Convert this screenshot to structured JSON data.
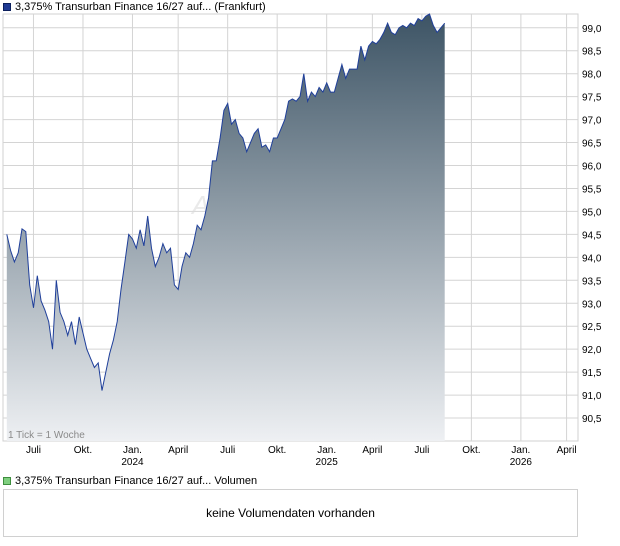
{
  "legend": {
    "price_label": "3,375% Transurban Finance 16/27 auf... (Frankfurt)",
    "volume_label": "3,375% Transurban Finance 16/27 auf... Volumen"
  },
  "volume_panel": {
    "empty_text": "keine Volumendaten vorhanden"
  },
  "tick_note": "1 Tick = 1 Woche",
  "watermark": "Akt",
  "colors": {
    "line": "#1f3f9a",
    "fill_top": "#3d5465",
    "fill_bottom": "#eef0f3",
    "grid": "#d4d4d4"
  },
  "chart_data": {
    "type": "area",
    "ylim": [
      90.0,
      99.3
    ],
    "y_ticks": [
      90.5,
      91.0,
      91.5,
      92.0,
      92.5,
      93.0,
      93.5,
      94.0,
      94.5,
      95.0,
      95.5,
      96.0,
      96.5,
      97.0,
      97.5,
      98.0,
      98.5,
      99.0
    ],
    "y_tick_labels": [
      "90,5",
      "91,0",
      "91,5",
      "92,0",
      "92,5",
      "93,0",
      "93,5",
      "94,0",
      "94,5",
      "95,0",
      "95,5",
      "96,0",
      "96,5",
      "97,0",
      "97,5",
      "98,0",
      "98,5",
      "99,0"
    ],
    "x_tick_labels": [
      "Juli",
      "Okt.",
      "Jan.",
      "April",
      "Juli",
      "Okt.",
      "Jan.",
      "April",
      "Juli",
      "Okt.",
      "Jan.",
      "April"
    ],
    "x_tick_index": [
      7,
      20,
      33,
      45,
      58,
      71,
      84,
      96,
      109,
      122,
      135,
      147
    ],
    "year_labels": [
      {
        "label": "2024",
        "index": 33
      },
      {
        "label": "2025",
        "index": 84
      },
      {
        "label": "2026",
        "index": 135
      }
    ],
    "x_index_range": [
      -1,
      150
    ],
    "values": [
      94.5,
      94.15,
      93.9,
      94.1,
      94.62,
      94.56,
      93.4,
      92.9,
      93.6,
      93.05,
      92.85,
      92.6,
      92.0,
      93.5,
      92.8,
      92.6,
      92.3,
      92.6,
      92.1,
      92.7,
      92.35,
      92.0,
      91.8,
      91.6,
      91.7,
      91.1,
      91.5,
      91.9,
      92.2,
      92.6,
      93.3,
      93.9,
      94.5,
      94.4,
      94.2,
      94.6,
      94.25,
      94.9,
      94.2,
      93.8,
      94.0,
      94.3,
      94.1,
      94.2,
      93.4,
      93.3,
      93.8,
      94.1,
      94.0,
      94.3,
      94.7,
      94.6,
      94.9,
      95.3,
      96.1,
      96.1,
      96.6,
      97.2,
      97.35,
      96.9,
      97.0,
      96.7,
      96.6,
      96.3,
      96.5,
      96.7,
      96.8,
      96.4,
      96.45,
      96.3,
      96.6,
      96.6,
      96.8,
      97.0,
      97.4,
      97.45,
      97.4,
      97.5,
      98.0,
      97.4,
      97.6,
      97.5,
      97.7,
      97.6,
      97.8,
      97.6,
      97.6,
      97.9,
      98.2,
      97.9,
      98.1,
      98.1,
      98.1,
      98.6,
      98.3,
      98.6,
      98.7,
      98.65,
      98.75,
      98.9,
      99.1,
      98.9,
      98.85,
      99.0,
      99.05,
      99.0,
      99.1,
      99.05,
      99.2,
      99.15,
      99.25,
      99.3,
      99.05,
      98.9,
      99.0,
      99.1
    ],
    "grid": true,
    "legend_placement": "top-left"
  }
}
